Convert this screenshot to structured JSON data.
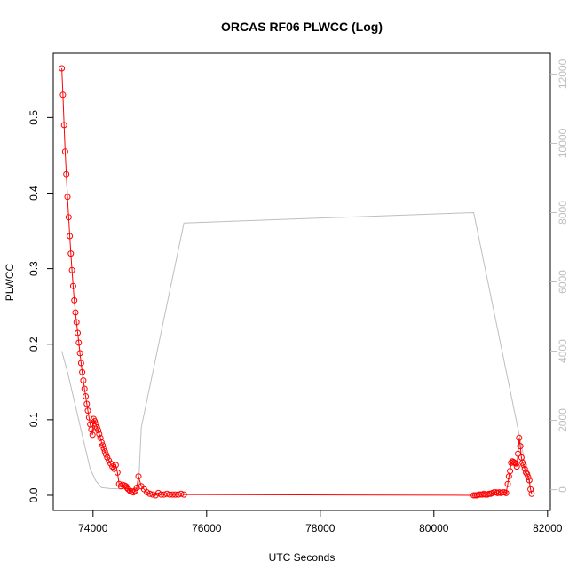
{
  "chart_data": {
    "type": "line",
    "title": "ORCAS RF06 PLWCC (Log)",
    "xlabel": "UTC Seconds",
    "ylabel": "PLWCC",
    "xlim": [
      73300,
      82050
    ],
    "ylim": [
      -0.02,
      0.585
    ],
    "ylim_right": [
      -600,
      12600
    ],
    "x_ticks": [
      74000,
      76000,
      78000,
      80000,
      82000
    ],
    "x_tick_labels": [
      "74000",
      "76000",
      "78000",
      "80000",
      "82000"
    ],
    "y_ticks": [
      0.0,
      0.1,
      0.2,
      0.3,
      0.4,
      0.5
    ],
    "y_tick_labels": [
      "0.0",
      "0.1",
      "0.2",
      "0.3",
      "0.4",
      "0.5"
    ],
    "y_right_ticks": [
      0,
      2000,
      4000,
      6000,
      8000,
      10000,
      12000
    ],
    "y_right_tick_labels": [
      "0",
      "2000",
      "4000",
      "6000",
      "8000",
      "10000",
      "12000"
    ],
    "grid": false,
    "legend": "none",
    "series": [
      {
        "axis": "left",
        "style": "line+points",
        "color": "#ff0000",
        "x": [
          73450,
          73470,
          73490,
          73510,
          73530,
          73550,
          73570,
          73590,
          73610,
          73630,
          73650,
          73670,
          73690,
          73710,
          73730,
          73750,
          73770,
          73790,
          73810,
          73830,
          73850,
          73870,
          73890,
          73910,
          73930,
          73950,
          73970,
          73990,
          74010,
          74030,
          74050,
          74070,
          74090,
          74110,
          74130,
          74150,
          74170,
          74190,
          74210,
          74230,
          74250,
          74280,
          74310,
          74340,
          74370,
          74400,
          74430,
          74460,
          74490,
          74520,
          74550,
          74580,
          74600,
          74620,
          74650,
          74680,
          74710,
          74740,
          74770,
          74800,
          74850,
          74900,
          74950,
          75000,
          75050,
          75100,
          75150,
          75200,
          75250,
          75300,
          75350,
          75400,
          75450,
          75500,
          75550,
          75600,
          80700,
          80730,
          80760,
          80790,
          80820,
          80850,
          80880,
          80910,
          80940,
          80970,
          81000,
          81030,
          81060,
          81090,
          81120,
          81150,
          81180,
          81210,
          81240,
          81270,
          81300,
          81320,
          81340,
          81360,
          81380,
          81400,
          81420,
          81440,
          81460,
          81480,
          81500,
          81520,
          81540,
          81560,
          81580,
          81600,
          81620,
          81640,
          81660,
          81680,
          81700,
          81720
        ],
        "y": [
          0.565,
          0.53,
          0.49,
          0.455,
          0.425,
          0.395,
          0.368,
          0.343,
          0.32,
          0.298,
          0.277,
          0.258,
          0.242,
          0.229,
          0.215,
          0.202,
          0.188,
          0.175,
          0.163,
          0.152,
          0.141,
          0.131,
          0.121,
          0.112,
          0.103,
          0.094,
          0.087,
          0.08,
          0.101,
          0.098,
          0.094,
          0.09,
          0.086,
          0.081,
          0.076,
          0.07,
          0.066,
          0.062,
          0.058,
          0.054,
          0.05,
          0.046,
          0.042,
          0.038,
          0.035,
          0.04,
          0.03,
          0.015,
          0.012,
          0.014,
          0.013,
          0.012,
          0.01,
          0.008,
          0.006,
          0.005,
          0.004,
          0.006,
          0.01,
          0.025,
          0.012,
          0.008,
          0.004,
          0.002,
          0.001,
          0.0,
          0.003,
          0.001,
          0.001,
          0.002,
          0.001,
          0.001,
          0.001,
          0.001,
          0.002,
          0.001,
          0.0,
          0.0,
          0.0,
          0.001,
          0.001,
          0.001,
          0.002,
          0.001,
          0.001,
          0.002,
          0.002,
          0.003,
          0.004,
          0.004,
          0.003,
          0.004,
          0.003,
          0.004,
          0.004,
          0.003,
          0.015,
          0.025,
          0.032,
          0.043,
          0.045,
          0.044,
          0.043,
          0.042,
          0.038,
          0.055,
          0.076,
          0.065,
          0.05,
          0.043,
          0.04,
          0.035,
          0.03,
          0.028,
          0.024,
          0.02,
          0.008,
          0.002
        ]
      },
      {
        "axis": "right",
        "style": "line",
        "color": "#bebebe",
        "x": [
          73450,
          73550,
          73650,
          73750,
          73850,
          73950,
          74050,
          74150,
          74300,
          74500,
          74700,
          74800,
          74850,
          75600,
          80700,
          81700
        ],
        "y": [
          4000,
          3400,
          2700,
          2000,
          1300,
          600,
          250,
          60,
          30,
          20,
          20,
          60,
          1800,
          7700,
          8000,
          0
        ]
      }
    ]
  }
}
